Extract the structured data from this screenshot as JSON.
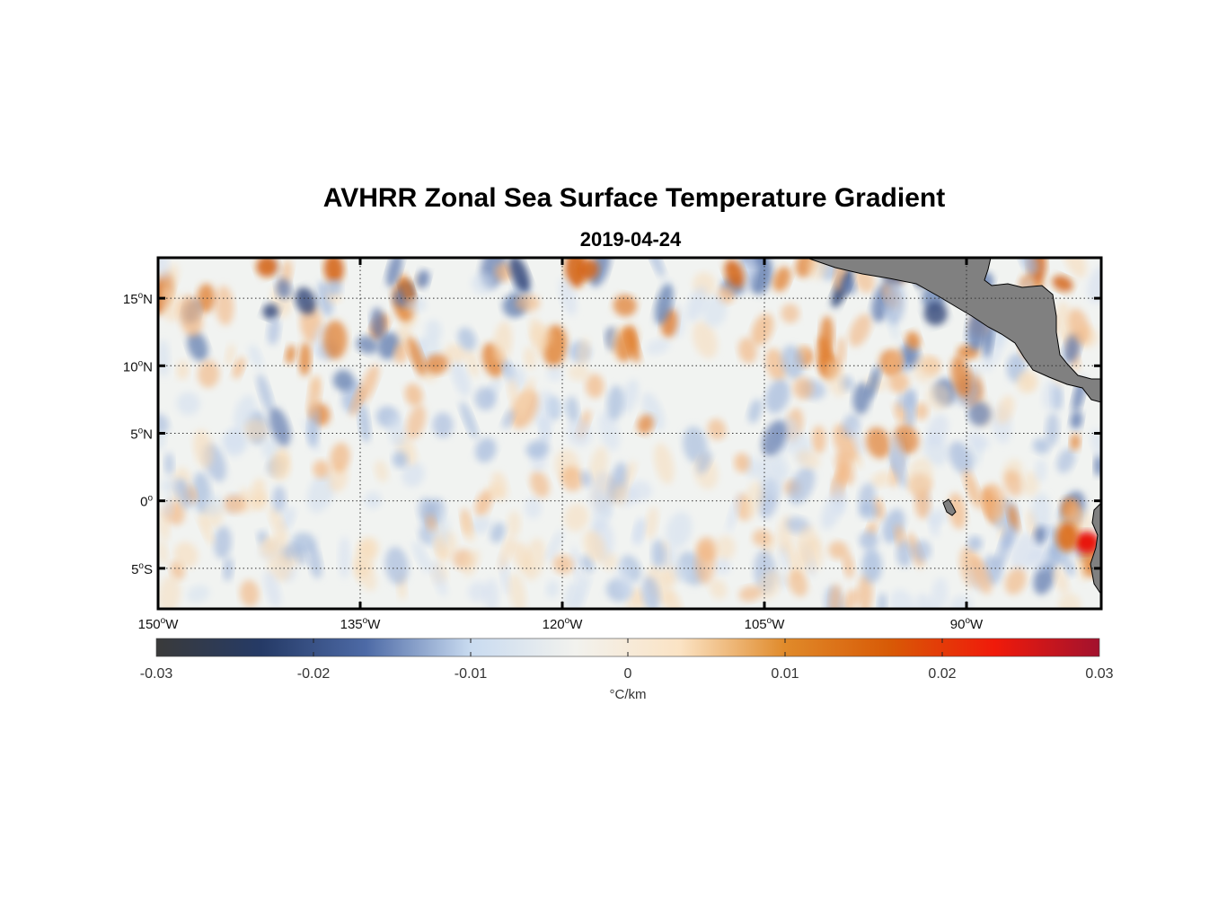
{
  "title": "AVHRR Zonal Sea Surface Temperature Gradient",
  "subtitle": "2019-04-24",
  "map": {
    "lon_range": [
      -150,
      -80
    ],
    "lat_range": [
      -8,
      18
    ],
    "lon_ticks": [
      {
        "value": -150,
        "deg": "150",
        "hemi": "W"
      },
      {
        "value": -135,
        "deg": "135",
        "hemi": "W"
      },
      {
        "value": -120,
        "deg": "120",
        "hemi": "W"
      },
      {
        "value": -105,
        "deg": "105",
        "hemi": "W"
      },
      {
        "value": -90,
        "deg": "90",
        "hemi": "W"
      }
    ],
    "lat_ticks": [
      {
        "value": 15,
        "deg": "15",
        "hemi": "N"
      },
      {
        "value": 10,
        "deg": "10",
        "hemi": "N"
      },
      {
        "value": 5,
        "deg": "5",
        "hemi": "N"
      },
      {
        "value": 0,
        "deg": "0",
        "hemi": ""
      },
      {
        "value": -5,
        "deg": "5",
        "hemi": "S"
      }
    ],
    "grid": "dotted",
    "land_color": "#808080"
  },
  "colorbar": {
    "ticks": [
      "-0.03",
      "-0.02",
      "-0.01",
      "0",
      "0.01",
      "0.02",
      "0.03"
    ],
    "range": [
      -0.03,
      0.03
    ],
    "unit": "°C/km",
    "colors": [
      "#3a3a3a",
      "#253a66",
      "#4d6aa6",
      "#c9dbf0",
      "#f2f2ee",
      "#fbe3c4",
      "#e08a2a",
      "#d85a06",
      "#f01a0a",
      "#a2122e"
    ]
  }
}
